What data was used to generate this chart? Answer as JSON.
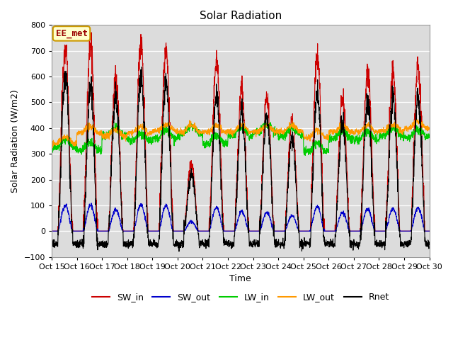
{
  "title": "Solar Radiation",
  "ylabel": "Solar Radiation (W/m2)",
  "xlabel": "Time",
  "ylim": [
    -100,
    800
  ],
  "yticks": [
    -100,
    0,
    100,
    200,
    300,
    400,
    500,
    600,
    700,
    800
  ],
  "xtick_labels": [
    "Oct 15",
    "Oct 16",
    "Oct 17",
    "Oct 18",
    "Oct 19",
    "Oct 20",
    "Oct 21",
    "Oct 22",
    "Oct 23",
    "Oct 24",
    "Oct 25",
    "Oct 26",
    "Oct 27",
    "Oct 28",
    "Oct 29",
    "Oct 30"
  ],
  "legend_labels": [
    "SW_in",
    "SW_out",
    "LW_in",
    "LW_out",
    "Rnet"
  ],
  "line_colors": [
    "#cc0000",
    "#0000cc",
    "#00cc00",
    "#ff9900",
    "#000000"
  ],
  "annotation_text": "EE_met",
  "annotation_color": "#990000",
  "annotation_bg": "#ffffcc",
  "annotation_border": "#cc9900",
  "bg_color": "#dcdcdc",
  "title_fontsize": 11,
  "label_fontsize": 9,
  "tick_fontsize": 8,
  "legend_fontsize": 9,
  "n_days": 15,
  "n_per_day": 144,
  "day_peaks_sw": [
    720,
    715,
    600,
    730,
    705,
    265,
    660,
    545,
    515,
    430,
    685,
    520,
    625,
    625,
    650
  ],
  "lw_in_base": [
    325,
    315,
    370,
    350,
    360,
    375,
    340,
    370,
    385,
    370,
    310,
    360,
    355,
    370,
    365
  ],
  "lw_out_base": [
    340,
    380,
    370,
    380,
    390,
    385,
    385,
    385,
    385,
    385,
    365,
    385,
    385,
    390,
    400
  ],
  "night_rnet": -50
}
